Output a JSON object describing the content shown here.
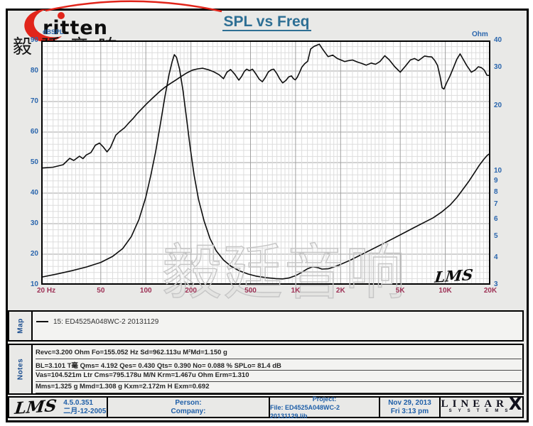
{
  "header": {
    "logo_text": "ritten",
    "brand_cn": "毅廷音响",
    "title": "SPL vs Freq"
  },
  "chart_data": {
    "type": "line",
    "title": "SPL vs Freq",
    "grid": true,
    "x_axis": {
      "scale": "log",
      "min": 20,
      "max": 20000,
      "ticks": [
        {
          "f": 20,
          "label": "20  Hz"
        },
        {
          "f": 50,
          "label": "50"
        },
        {
          "f": 100,
          "label": "100"
        },
        {
          "f": 200,
          "label": "200"
        },
        {
          "f": 500,
          "label": "500"
        },
        {
          "f": 1000,
          "label": "1K"
        },
        {
          "f": 2000,
          "label": "2K"
        },
        {
          "f": 5000,
          "label": "5K"
        },
        {
          "f": 10000,
          "label": "10K"
        },
        {
          "f": 20000,
          "label": "20K"
        }
      ]
    },
    "y_left": {
      "label": "dBSPL",
      "min": 10,
      "max": 90,
      "ticks": [
        90,
        80,
        70,
        60,
        50,
        40,
        30,
        20,
        10
      ]
    },
    "y_right": {
      "label": "Ohm",
      "scale": "log",
      "min": 3,
      "max": 40,
      "ticks": [
        40,
        30,
        20,
        10,
        9,
        8,
        7,
        6,
        5,
        4,
        3
      ]
    },
    "series": [
      {
        "name": "SPL response — 15: ED4525A048WC-2 20131129",
        "axis": "left",
        "unit": "dBSPL",
        "points": [
          [
            20,
            48.2
          ],
          [
            24,
            48.5
          ],
          [
            28,
            49.3
          ],
          [
            31,
            51.4
          ],
          [
            33,
            50.7
          ],
          [
            36,
            52.1
          ],
          [
            38,
            51.3
          ],
          [
            40,
            52.5
          ],
          [
            43,
            53.3
          ],
          [
            46,
            55.7
          ],
          [
            49,
            56.4
          ],
          [
            52,
            55.1
          ],
          [
            55,
            53.5
          ],
          [
            58,
            54.9
          ],
          [
            60,
            56.6
          ],
          [
            63,
            59.0
          ],
          [
            67,
            60.2
          ],
          [
            72,
            61.4
          ],
          [
            77,
            63.0
          ],
          [
            82,
            64.4
          ],
          [
            87,
            65.9
          ],
          [
            93,
            67.4
          ],
          [
            100,
            69.0
          ],
          [
            108,
            70.6
          ],
          [
            116,
            72.0
          ],
          [
            125,
            73.5
          ],
          [
            135,
            74.8
          ],
          [
            146,
            75.9
          ],
          [
            158,
            77.0
          ],
          [
            172,
            78.2
          ],
          [
            188,
            79.4
          ],
          [
            205,
            80.3
          ],
          [
            222,
            80.7
          ],
          [
            240,
            80.9
          ],
          [
            262,
            80.4
          ],
          [
            285,
            79.7
          ],
          [
            308,
            78.8
          ],
          [
            330,
            77.5
          ],
          [
            348,
            79.6
          ],
          [
            368,
            80.5
          ],
          [
            392,
            79.0
          ],
          [
            418,
            77.0
          ],
          [
            437,
            78.3
          ],
          [
            455,
            79.9
          ],
          [
            472,
            80.6
          ],
          [
            492,
            80.1
          ],
          [
            515,
            80.6
          ],
          [
            542,
            79.1
          ],
          [
            572,
            77.3
          ],
          [
            600,
            76.5
          ],
          [
            628,
            77.9
          ],
          [
            658,
            79.7
          ],
          [
            688,
            80.4
          ],
          [
            715,
            80.6
          ],
          [
            748,
            79.2
          ],
          [
            782,
            77.5
          ],
          [
            820,
            76.1
          ],
          [
            862,
            76.9
          ],
          [
            900,
            78.1
          ],
          [
            938,
            78.4
          ],
          [
            968,
            77.5
          ],
          [
            995,
            77.1
          ],
          [
            1025,
            77.9
          ],
          [
            1065,
            79.6
          ],
          [
            1100,
            81.2
          ],
          [
            1150,
            82.4
          ],
          [
            1205,
            83.2
          ],
          [
            1260,
            87.2
          ],
          [
            1330,
            88.1
          ],
          [
            1440,
            88.8
          ],
          [
            1505,
            87.4
          ],
          [
            1565,
            86.2
          ],
          [
            1650,
            84.7
          ],
          [
            1770,
            85.2
          ],
          [
            1900,
            84.1
          ],
          [
            2010,
            83.6
          ],
          [
            2130,
            83.1
          ],
          [
            2260,
            83.4
          ],
          [
            2400,
            83.6
          ],
          [
            2600,
            82.9
          ],
          [
            2800,
            82.4
          ],
          [
            2960,
            81.9
          ],
          [
            3200,
            82.6
          ],
          [
            3420,
            82.2
          ],
          [
            3660,
            83.1
          ],
          [
            3940,
            85.0
          ],
          [
            4220,
            83.7
          ],
          [
            4600,
            81.4
          ],
          [
            5000,
            79.6
          ],
          [
            5420,
            81.6
          ],
          [
            5840,
            83.6
          ],
          [
            6240,
            84.1
          ],
          [
            6620,
            83.4
          ],
          [
            7280,
            84.9
          ],
          [
            7700,
            84.7
          ],
          [
            8120,
            84.6
          ],
          [
            8520,
            83.4
          ],
          [
            8880,
            81.8
          ],
          [
            9220,
            78.3
          ],
          [
            9520,
            74.5
          ],
          [
            9800,
            74.1
          ],
          [
            10220,
            76.2
          ],
          [
            10720,
            78.2
          ],
          [
            11320,
            81.0
          ],
          [
            11920,
            83.8
          ],
          [
            12560,
            85.6
          ],
          [
            13220,
            83.7
          ],
          [
            13920,
            81.8
          ],
          [
            14920,
            79.6
          ],
          [
            15820,
            80.3
          ],
          [
            16600,
            81.4
          ],
          [
            17420,
            81.1
          ],
          [
            18200,
            80.3
          ],
          [
            18980,
            78.6
          ],
          [
            19950,
            78.5
          ]
        ]
      },
      {
        "name": "Impedance — 15: ED4525A048WC-2 20131129",
        "axis": "right",
        "unit": "Ohm",
        "points": [
          [
            20,
            3.25
          ],
          [
            25,
            3.35
          ],
          [
            32,
            3.48
          ],
          [
            40,
            3.62
          ],
          [
            50,
            3.8
          ],
          [
            60,
            4.05
          ],
          [
            70,
            4.4
          ],
          [
            80,
            5.0
          ],
          [
            90,
            6.0
          ],
          [
            100,
            7.6
          ],
          [
            108,
            9.6
          ],
          [
            116,
            12.2
          ],
          [
            125,
            16.5
          ],
          [
            134,
            22.0
          ],
          [
            143,
            28.0
          ],
          [
            150,
            32.0
          ],
          [
            155,
            34.4
          ],
          [
            160,
            33.5
          ],
          [
            168,
            29.5
          ],
          [
            177,
            23.5
          ],
          [
            187,
            17.5
          ],
          [
            198,
            12.8
          ],
          [
            210,
            9.6
          ],
          [
            225,
            7.4
          ],
          [
            245,
            5.9
          ],
          [
            268,
            4.9
          ],
          [
            295,
            4.3
          ],
          [
            330,
            3.9
          ],
          [
            370,
            3.65
          ],
          [
            420,
            3.48
          ],
          [
            480,
            3.36
          ],
          [
            550,
            3.28
          ],
          [
            640,
            3.23
          ],
          [
            740,
            3.2
          ],
          [
            820,
            3.19
          ],
          [
            900,
            3.22
          ],
          [
            1000,
            3.3
          ],
          [
            1100,
            3.42
          ],
          [
            1200,
            3.55
          ],
          [
            1300,
            3.63
          ],
          [
            1400,
            3.6
          ],
          [
            1500,
            3.54
          ],
          [
            1650,
            3.55
          ],
          [
            1800,
            3.62
          ],
          [
            2000,
            3.72
          ],
          [
            2300,
            3.88
          ],
          [
            2700,
            4.1
          ],
          [
            3200,
            4.35
          ],
          [
            3800,
            4.62
          ],
          [
            4500,
            4.9
          ],
          [
            5300,
            5.2
          ],
          [
            6200,
            5.5
          ],
          [
            7200,
            5.8
          ],
          [
            8300,
            6.1
          ],
          [
            9500,
            6.5
          ],
          [
            10800,
            7.0
          ],
          [
            12000,
            7.6
          ],
          [
            13200,
            8.3
          ],
          [
            14400,
            9.0
          ],
          [
            15600,
            9.8
          ],
          [
            16800,
            10.6
          ],
          [
            18000,
            11.3
          ],
          [
            19000,
            11.8
          ],
          [
            19950,
            12.1
          ]
        ]
      }
    ],
    "annotations": {
      "resonance_peak_hz": 155.052,
      "peak_impedance_ohm": 34.4,
      "watermark": "毅廷音响",
      "plot_logo": "LMS"
    }
  },
  "map": {
    "label": "Map",
    "legend": "15: ED4525A048WC-2    20131129"
  },
  "notes": {
    "label": "Notes",
    "lines": [
      "Revc=3.200 Ohm  Fo=155.052 Hz  Sd=962.113u M²Md=1.150 g",
      "BL=3.101 T毫  Qms= 4.192  Qes= 0.430  Qts= 0.390  No= 0.088 %  SPLo= 81.4 dB",
      "Vas=104.521m Ltr  Cms=795.178u M/N  Krm=1.467u Ohm  Erm=1.310",
      "Mms=1.325 g  Mmd=1.308 g  Kxm=2.172m H  Exm=0.692"
    ]
  },
  "footer": {
    "lms_logo": "LMS",
    "version": "4.5.0.351",
    "version_date": "二月-12-2005",
    "person_label": "Person:",
    "company_label": "Company:",
    "project_label": "Project:",
    "file_label": "File: ED4525A048WC-2  20131129.lib",
    "date": "Nov 29, 2013",
    "time": "Fri  3:13 pm",
    "brand_linear": "LINEAR",
    "brand_x": "X",
    "brand_systems": "SYSTEMS"
  },
  "colors": {
    "axis_blue": "#2b66ad",
    "freq_maroon": "#9d3155",
    "title_blue": "#2e6f94",
    "logo_red": "#e1251b",
    "curve_black": "#0d0d0d"
  }
}
